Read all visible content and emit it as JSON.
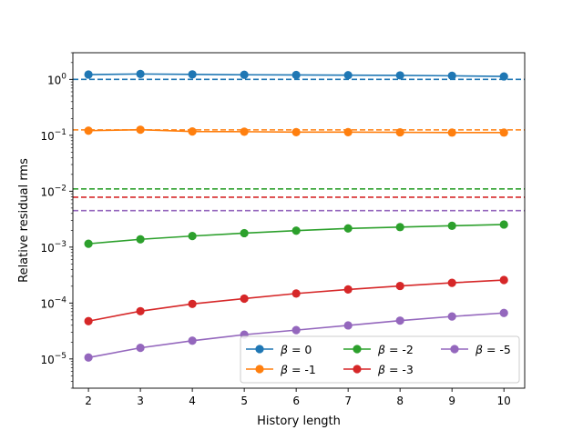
{
  "chart_data": {
    "type": "line",
    "yscale": "log",
    "title": "",
    "xlabel": "History length",
    "ylabel": "Relative residual rms",
    "xlim": [
      1.7,
      10.4
    ],
    "ylim": [
      3e-06,
      3.0
    ],
    "x": [
      2,
      3,
      4,
      5,
      6,
      7,
      8,
      9,
      10
    ],
    "x_ticks": [
      2,
      3,
      4,
      5,
      6,
      7,
      8,
      9,
      10
    ],
    "y_ticks": [
      {
        "value": 1.0,
        "base": "10",
        "exp": "0"
      },
      {
        "value": 0.1,
        "base": "10",
        "exp": "−1"
      },
      {
        "value": 0.01,
        "base": "10",
        "exp": "−2"
      },
      {
        "value": 0.001,
        "base": "10",
        "exp": "−3"
      },
      {
        "value": 0.0001,
        "base": "10",
        "exp": "−4"
      },
      {
        "value": 1e-05,
        "base": "10",
        "exp": "−5"
      }
    ],
    "series": [
      {
        "name": "β = 0",
        "legend_label": "= 0",
        "color": "#1f77b4",
        "values": [
          1.22,
          1.25,
          1.23,
          1.21,
          1.2,
          1.19,
          1.18,
          1.16,
          1.13
        ],
        "reference": 1.0
      },
      {
        "name": "β = -1",
        "legend_label": "= -1",
        "color": "#ff7f0e",
        "values": [
          0.121,
          0.126,
          0.117,
          0.116,
          0.114,
          0.114,
          0.113,
          0.112,
          0.112
        ],
        "reference": 0.125
      },
      {
        "name": "β = -2",
        "legend_label": "= -2",
        "color": "#2ca02c",
        "values": [
          0.00115,
          0.00138,
          0.00158,
          0.00178,
          0.00197,
          0.00216,
          0.00228,
          0.00241,
          0.00254
        ],
        "reference": 0.011
      },
      {
        "name": "β = -3",
        "legend_label": "= -3",
        "color": "#d62728",
        "values": [
          4.75e-05,
          7.15e-05,
          9.65e-05,
          0.00012,
          0.000148,
          0.000175,
          0.000202,
          0.00023,
          0.000258
        ],
        "reference": 0.0078
      },
      {
        "name": "β = -5",
        "legend_label": "= -5",
        "color": "#9467bd",
        "values": [
          1.06e-05,
          1.58e-05,
          2.12e-05,
          2.72e-05,
          3.28e-05,
          3.98e-05,
          4.85e-05,
          5.75e-05,
          6.65e-05
        ],
        "reference": 0.0045
      }
    ],
    "legend": {
      "placement": "lower-right",
      "columns": 3,
      "symbol": "β"
    }
  }
}
